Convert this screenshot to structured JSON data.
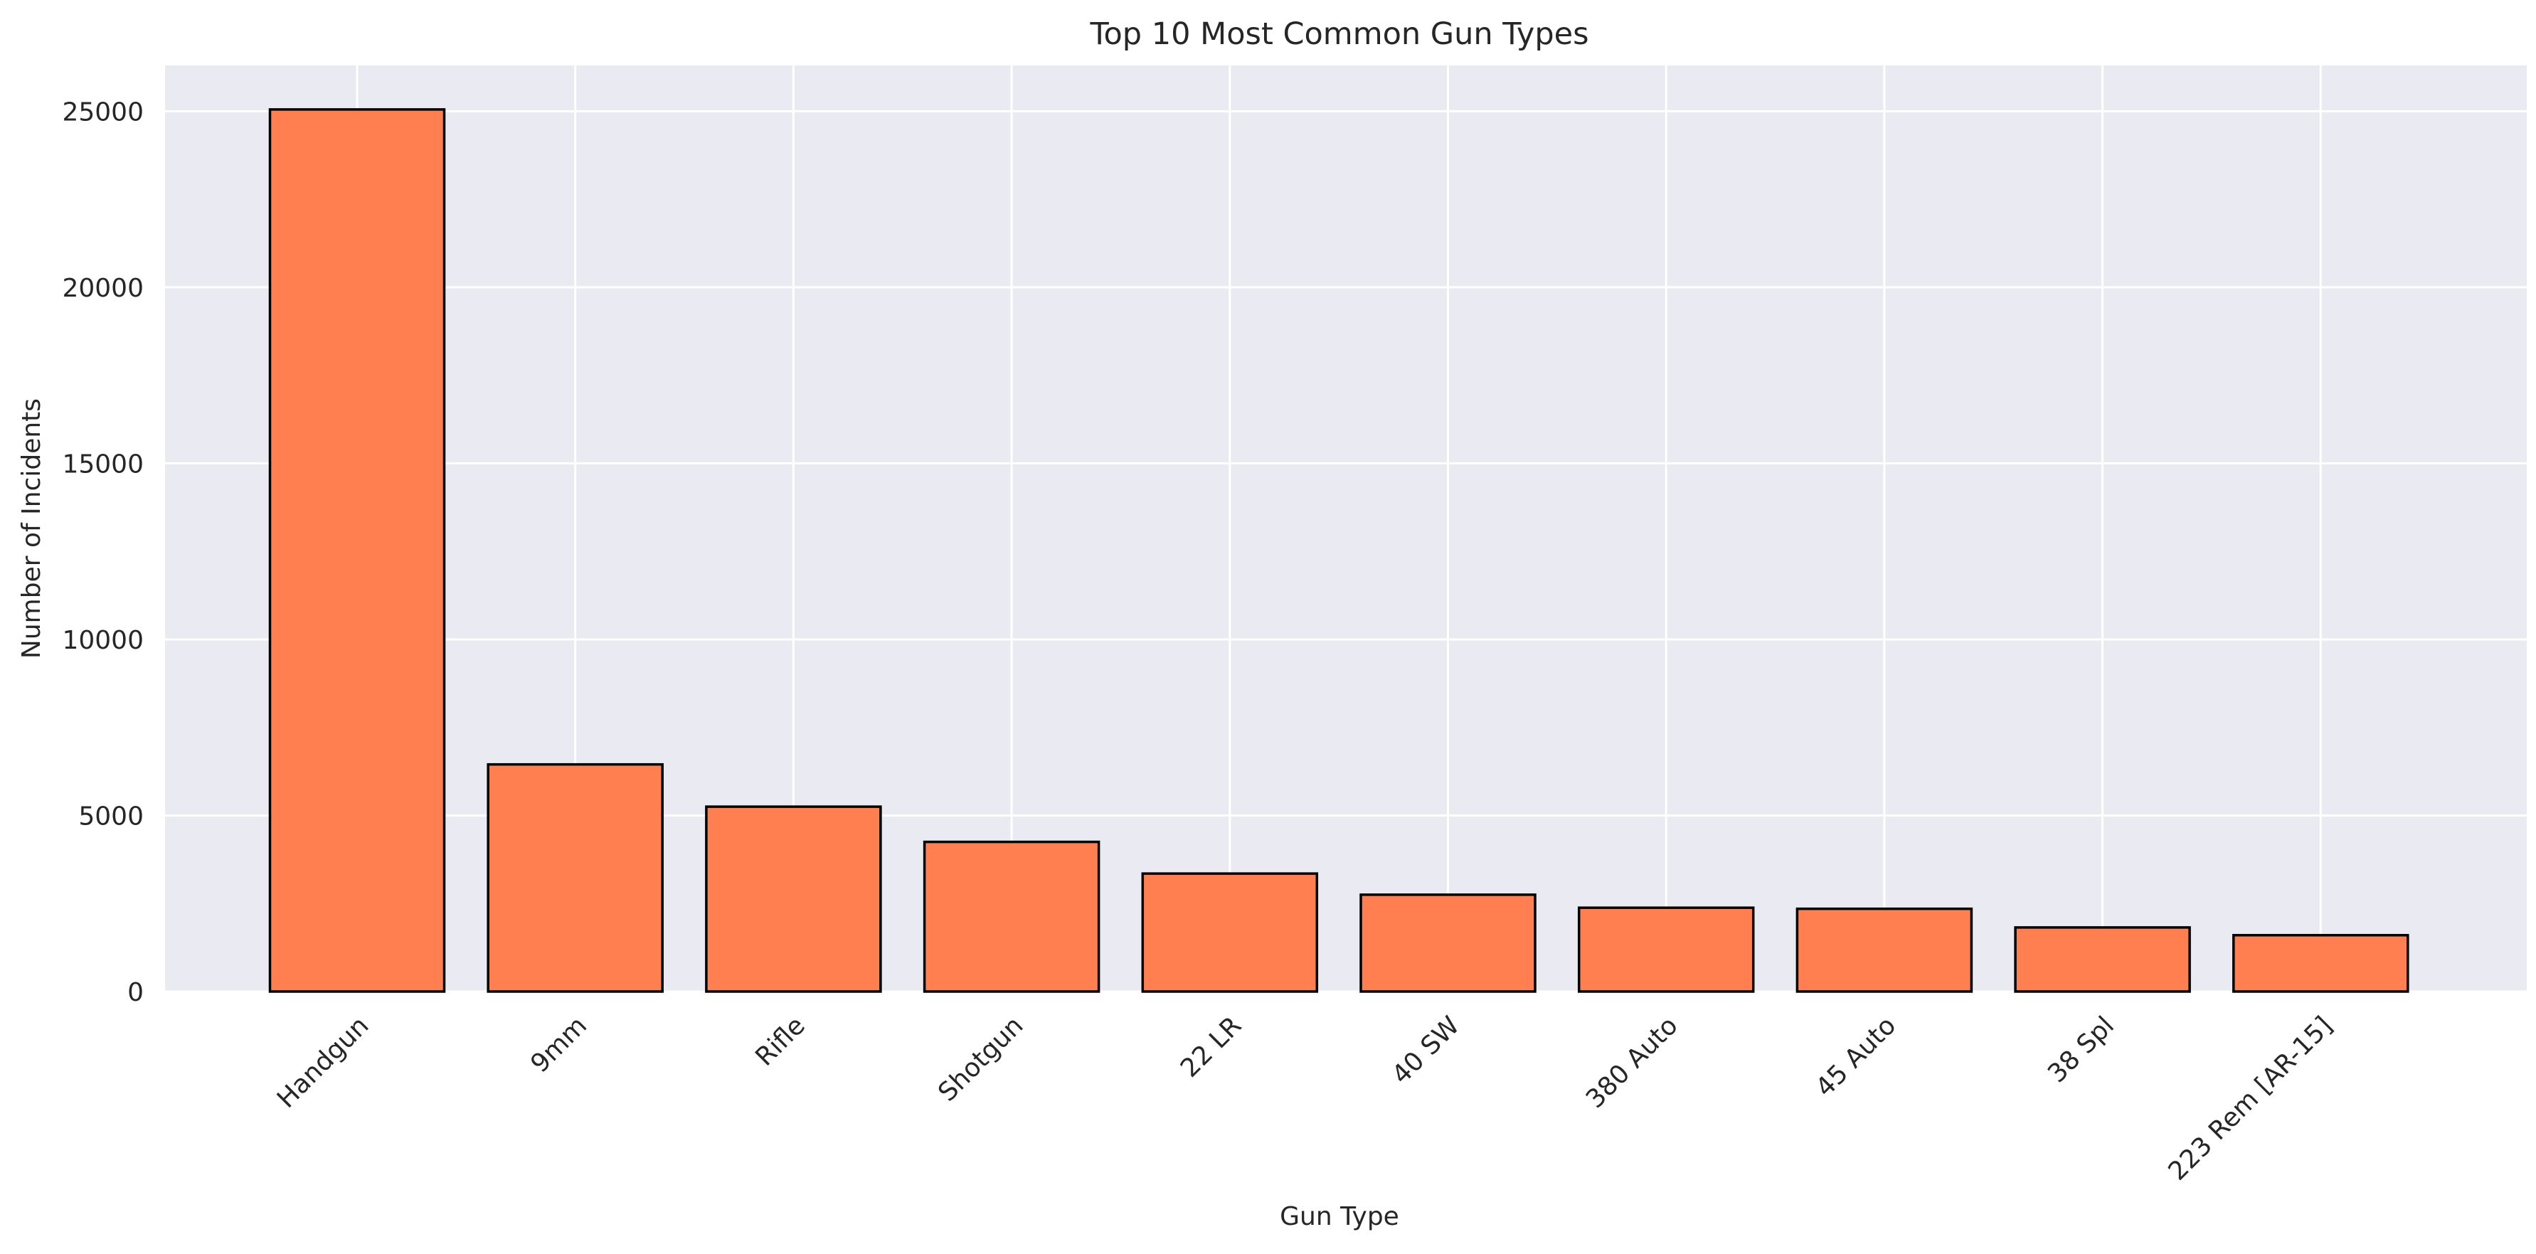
{
  "chart_data": {
    "type": "bar",
    "title": "Top 10 Most Common Gun Types",
    "xlabel": "Gun Type",
    "ylabel": "Number of Incidents",
    "categories": [
      "Handgun",
      "9mm",
      "Rifle",
      "Shotgun",
      "22 LR",
      "40 SW",
      "380 Auto",
      "45 Auto",
      "38 Spl",
      "223 Rem [AR-15]"
    ],
    "values": [
      25050,
      6450,
      5250,
      4250,
      3350,
      2750,
      2380,
      2350,
      1820,
      1600
    ],
    "yticks": [
      0,
      5000,
      10000,
      15000,
      20000,
      25000
    ],
    "ylim": [
      0,
      26300
    ],
    "grid": true,
    "colors": {
      "bar_fill": "#ff7f50",
      "bar_edge": "#000000",
      "plot_background": "#eaeaf2",
      "grid": "#ffffff",
      "text": "#262626"
    }
  }
}
